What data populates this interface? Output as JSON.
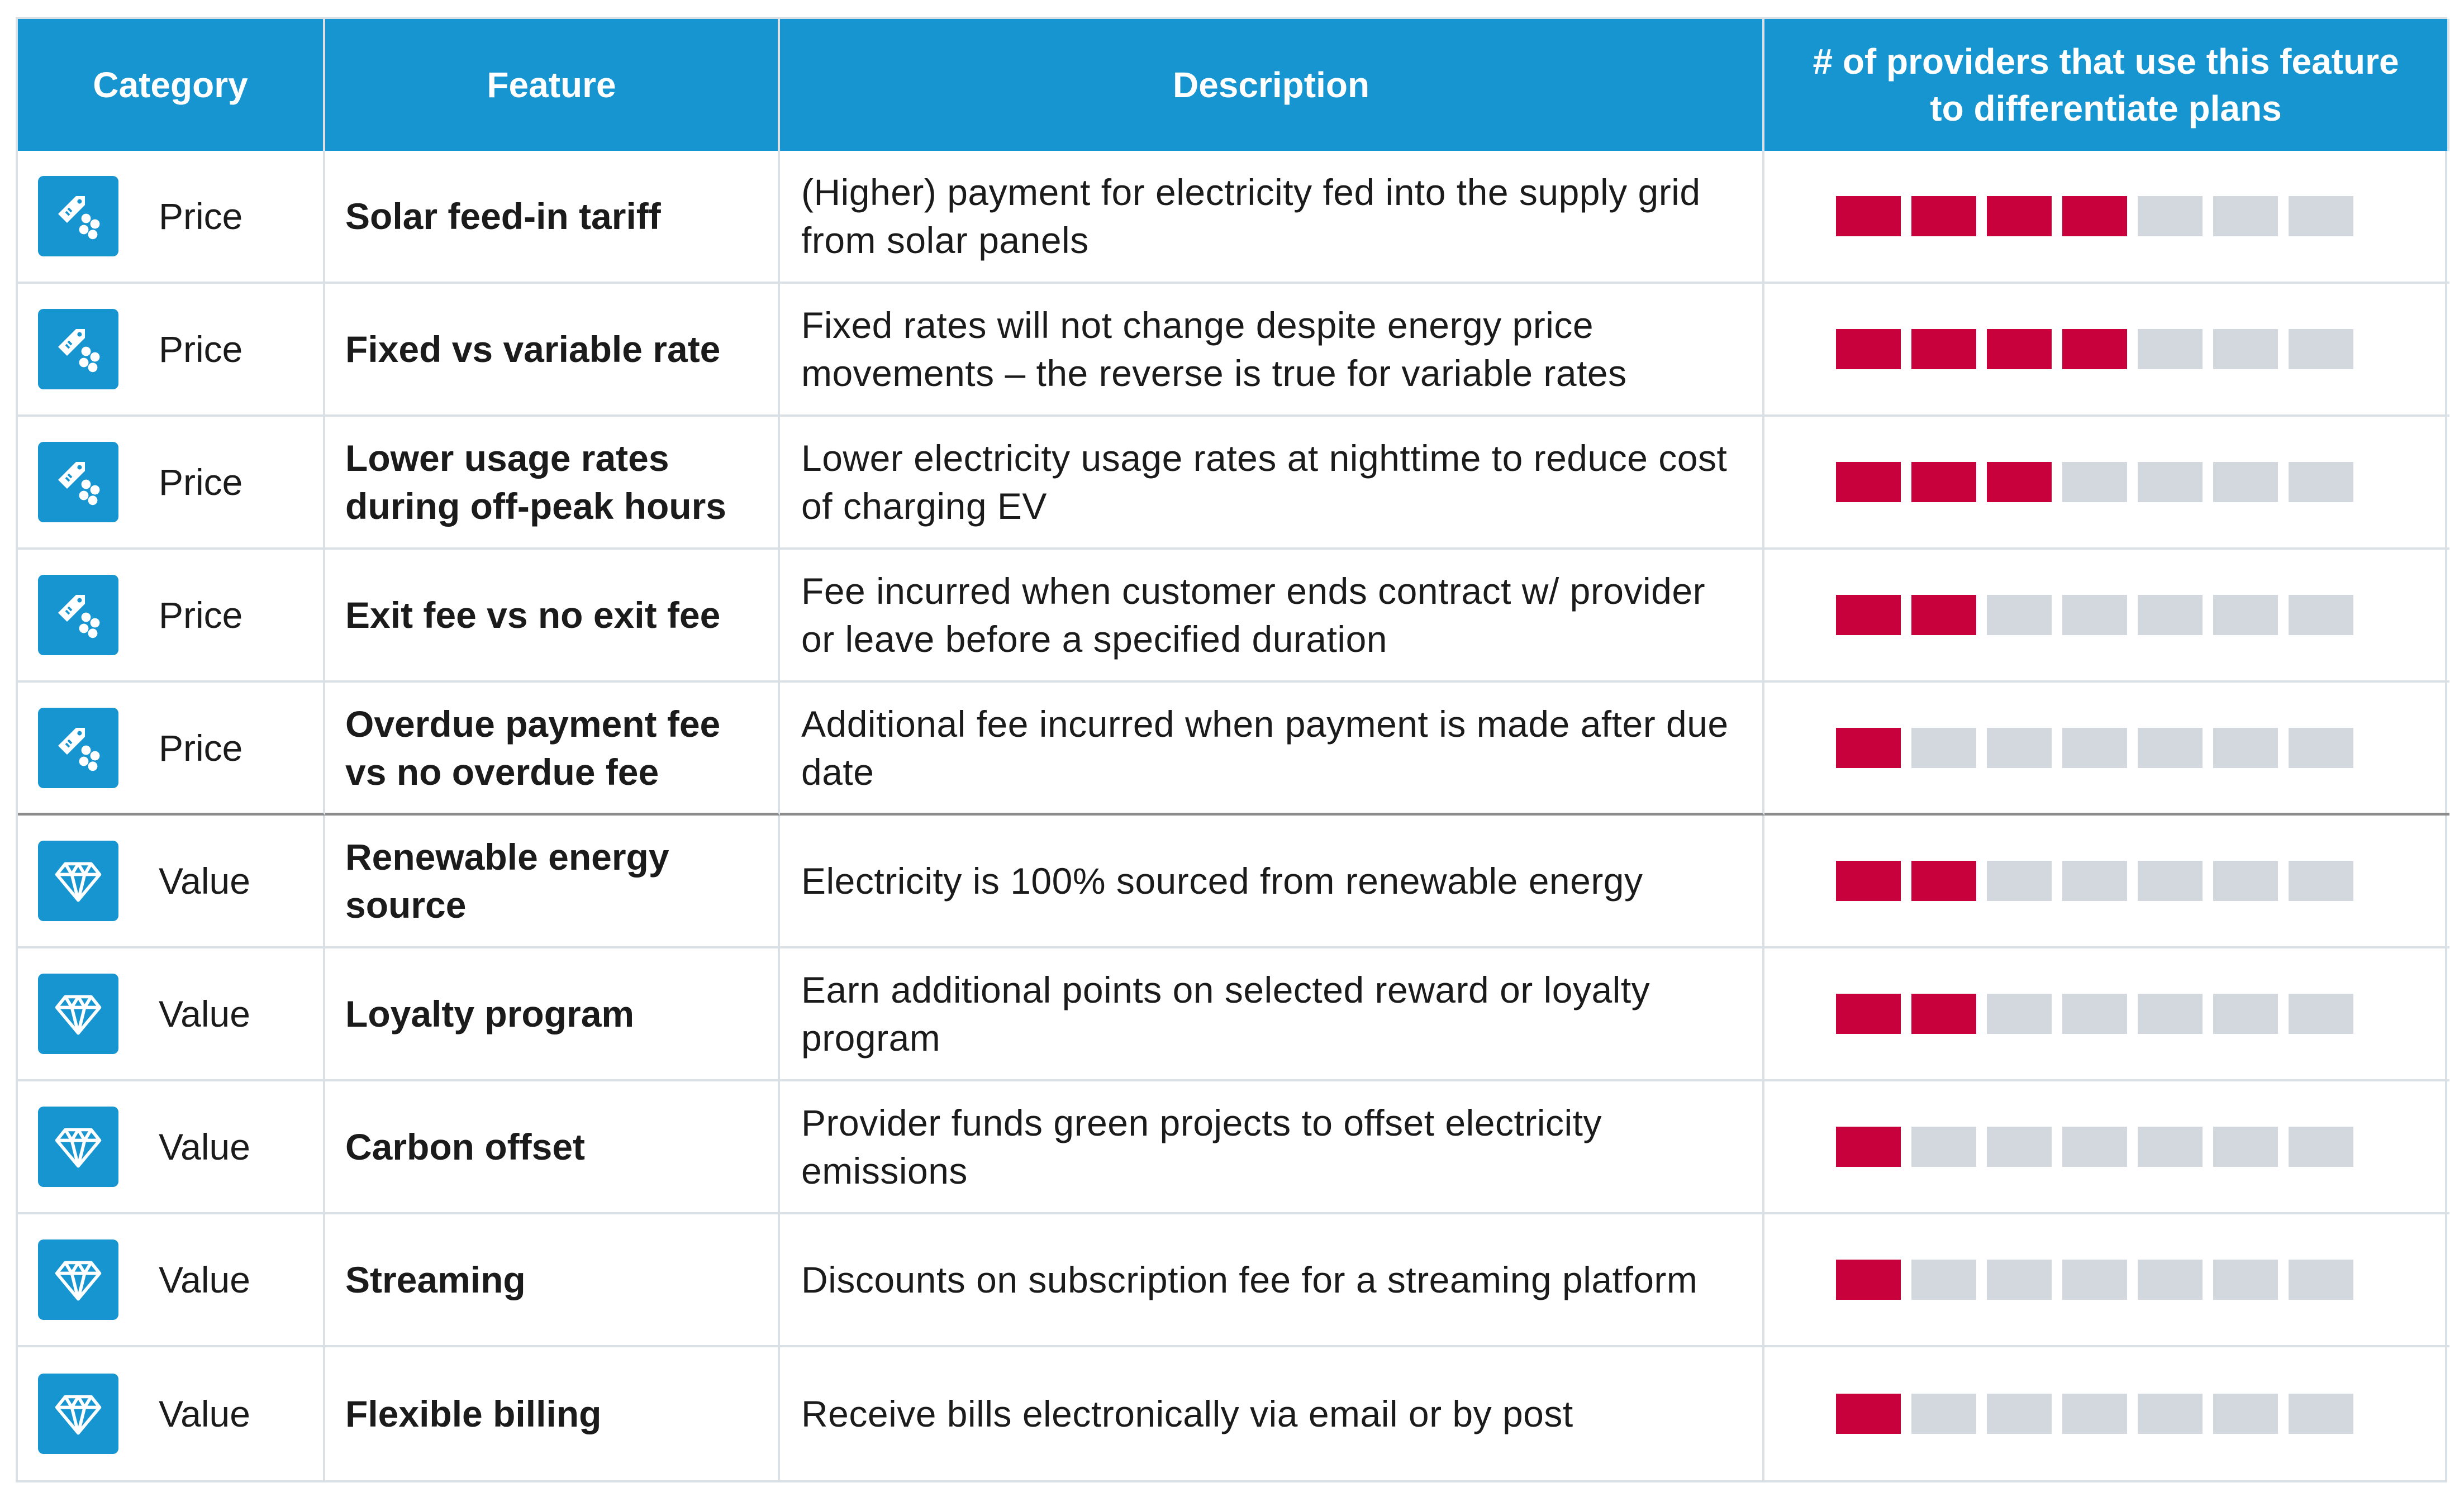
{
  "colors": {
    "header_bg": "#1695d0",
    "header_text": "#ffffff",
    "icon_bg": "#1695d0",
    "bar_filled": "#c8003c",
    "bar_empty": "#d2d8de",
    "grid": "#d9e1e7",
    "group_divider": "#8c8c8c"
  },
  "header": {
    "category": "Category",
    "feature": "Feature",
    "description": "Description",
    "providers_line1": "# of providers that use this feature",
    "providers_line2": "to differentiate plans"
  },
  "chart_data": {
    "type": "table",
    "max_providers": 7,
    "columns": [
      "Category",
      "Feature",
      "Description",
      "# of providers that use this feature to differentiate plans"
    ],
    "rows": [
      {
        "category": "Price",
        "icon": "price-tag-icon",
        "feature": "Solar feed-in tariff",
        "description": "(Higher) payment for electricity fed into the supply grid from solar panels",
        "providers": 4
      },
      {
        "category": "Price",
        "icon": "price-tag-icon",
        "feature": "Fixed vs variable rate",
        "description": "Fixed rates will not change despite energy price movements – the reverse is true for variable rates",
        "providers": 4
      },
      {
        "category": "Price",
        "icon": "price-tag-icon",
        "feature": "Lower usage rates during off-peak hours",
        "description": "Lower electricity usage rates at nighttime to reduce cost of charging EV",
        "providers": 3
      },
      {
        "category": "Price",
        "icon": "price-tag-icon",
        "feature": "Exit fee vs no exit fee",
        "description": "Fee incurred when customer ends contract w/ provider or leave before a specified duration",
        "providers": 2
      },
      {
        "category": "Price",
        "icon": "price-tag-icon",
        "feature": "Overdue payment fee vs no overdue fee",
        "description": "Additional fee incurred when payment is made after due date",
        "providers": 1
      },
      {
        "category": "Value",
        "icon": "diamond-icon",
        "feature": "Renewable energy source",
        "description": "Electricity is 100% sourced from renewable energy",
        "providers": 2
      },
      {
        "category": "Value",
        "icon": "diamond-icon",
        "feature": "Loyalty program",
        "description": "Earn additional points on selected reward or loyalty program",
        "providers": 2
      },
      {
        "category": "Value",
        "icon": "diamond-icon",
        "feature": "Carbon offset",
        "description": "Provider funds green projects to offset electricity emissions",
        "providers": 1
      },
      {
        "category": "Value",
        "icon": "diamond-icon",
        "feature": "Streaming",
        "description": "Discounts on subscription fee for a streaming platform",
        "providers": 1
      },
      {
        "category": "Value",
        "icon": "diamond-icon",
        "feature": "Flexible billing",
        "description": "Receive bills electronically via email or by post",
        "providers": 1
      }
    ]
  }
}
